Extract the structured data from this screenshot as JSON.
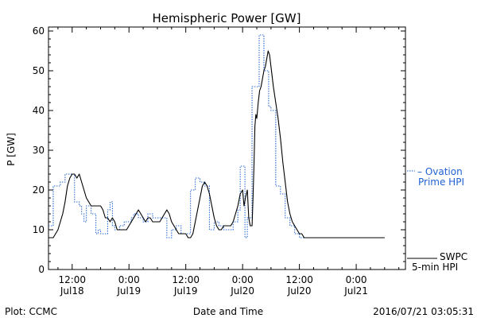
{
  "chart_data": {
    "type": "line",
    "title": "Hemispheric Power [GW]",
    "ylabel": "P [GW]",
    "xlabel": "Date and Time",
    "ylim": [
      0,
      61
    ],
    "yticks": [
      0,
      10,
      20,
      30,
      40,
      50,
      60
    ],
    "x_unit": "hours since 2016-07-17 00:00 UT",
    "xlim": [
      7,
      82.4
    ],
    "xticks": [
      {
        "x": 12,
        "time": "12:00",
        "date": "Jul18"
      },
      {
        "x": 24,
        "time": "0:00",
        "date": "Jul19"
      },
      {
        "x": 36,
        "time": "12:00",
        "date": "Jul19"
      },
      {
        "x": 48,
        "time": "0:00",
        "date": "Jul20"
      },
      {
        "x": 60,
        "time": "12:00",
        "date": "Jul20"
      },
      {
        "x": 72,
        "time": "0:00",
        "date": "Jul21"
      }
    ],
    "series": [
      {
        "name": "SWPC 5-min HPI",
        "color": "#000000",
        "style": "solid",
        "points": [
          [
            7.0,
            8
          ],
          [
            8.0,
            8
          ],
          [
            8.5,
            9
          ],
          [
            9.0,
            10
          ],
          [
            9.5,
            12
          ],
          [
            10.0,
            14
          ],
          [
            10.5,
            17
          ],
          [
            11.0,
            21
          ],
          [
            11.5,
            23
          ],
          [
            12.0,
            24
          ],
          [
            12.5,
            24
          ],
          [
            13.0,
            23
          ],
          [
            13.5,
            24
          ],
          [
            14.0,
            22
          ],
          [
            14.5,
            20
          ],
          [
            15.0,
            18
          ],
          [
            15.5,
            17
          ],
          [
            16.0,
            16
          ],
          [
            17.0,
            16
          ],
          [
            18.0,
            16
          ],
          [
            18.5,
            15
          ],
          [
            19.0,
            13
          ],
          [
            19.5,
            13
          ],
          [
            20.0,
            12
          ],
          [
            20.5,
            13
          ],
          [
            21.0,
            12
          ],
          [
            21.5,
            10
          ],
          [
            22.0,
            10
          ],
          [
            23.0,
            10
          ],
          [
            23.5,
            10
          ],
          [
            24.0,
            11
          ],
          [
            24.5,
            12
          ],
          [
            25.0,
            13
          ],
          [
            25.5,
            14
          ],
          [
            26.0,
            15
          ],
          [
            26.5,
            14
          ],
          [
            27.0,
            13
          ],
          [
            27.5,
            12
          ],
          [
            28.0,
            13
          ],
          [
            28.5,
            13
          ],
          [
            29.0,
            12
          ],
          [
            30.0,
            12
          ],
          [
            30.5,
            12
          ],
          [
            31.0,
            13
          ],
          [
            31.5,
            14
          ],
          [
            32.0,
            15
          ],
          [
            32.5,
            14
          ],
          [
            33.0,
            12
          ],
          [
            33.5,
            11
          ],
          [
            34.0,
            10
          ],
          [
            34.5,
            9
          ],
          [
            35.0,
            9
          ],
          [
            36.0,
            9
          ],
          [
            36.5,
            8
          ],
          [
            37.0,
            8
          ],
          [
            37.5,
            9
          ],
          [
            38.0,
            12
          ],
          [
            38.5,
            15
          ],
          [
            39.0,
            18
          ],
          [
            39.5,
            21
          ],
          [
            40.0,
            22
          ],
          [
            40.5,
            21
          ],
          [
            41.0,
            19
          ],
          [
            41.5,
            16
          ],
          [
            42.0,
            13
          ],
          [
            42.5,
            11
          ],
          [
            43.0,
            10
          ],
          [
            43.5,
            10
          ],
          [
            44.0,
            11
          ],
          [
            44.5,
            11
          ],
          [
            45.0,
            11
          ],
          [
            45.5,
            11
          ],
          [
            46.0,
            12
          ],
          [
            46.5,
            14
          ],
          [
            47.0,
            16
          ],
          [
            47.5,
            19
          ],
          [
            48.0,
            20
          ],
          [
            48.3,
            16
          ],
          [
            48.6,
            18
          ],
          [
            49.0,
            20
          ],
          [
            49.3,
            13
          ],
          [
            49.6,
            11
          ],
          [
            50.0,
            11
          ],
          [
            50.2,
            18
          ],
          [
            50.4,
            26
          ],
          [
            50.6,
            36
          ],
          [
            50.8,
            39
          ],
          [
            51.0,
            38
          ],
          [
            51.3,
            42
          ],
          [
            51.6,
            45
          ],
          [
            51.9,
            46
          ],
          [
            52.2,
            48
          ],
          [
            52.5,
            50
          ],
          [
            52.8,
            51
          ],
          [
            53.1,
            53
          ],
          [
            53.4,
            55
          ],
          [
            53.7,
            54
          ],
          [
            54.0,
            51
          ],
          [
            54.5,
            46
          ],
          [
            55.0,
            42
          ],
          [
            55.5,
            38
          ],
          [
            56.0,
            33
          ],
          [
            56.5,
            27
          ],
          [
            57.0,
            22
          ],
          [
            57.5,
            17
          ],
          [
            58.0,
            14
          ],
          [
            58.5,
            12
          ],
          [
            59.0,
            11
          ],
          [
            59.5,
            10
          ],
          [
            60.0,
            9
          ],
          [
            60.5,
            9
          ],
          [
            61.0,
            8
          ],
          [
            62.0,
            8
          ],
          [
            64.0,
            8
          ],
          [
            66.0,
            8
          ],
          [
            70.0,
            8
          ],
          [
            75.0,
            8
          ],
          [
            78.0,
            8
          ]
        ]
      },
      {
        "name": "Ovation Prime HPI",
        "color": "#1f62d4",
        "style": "step-dotted",
        "points": [
          [
            7.0,
            11
          ],
          [
            8.0,
            21
          ],
          [
            9.5,
            22
          ],
          [
            10.5,
            24
          ],
          [
            11.5,
            24
          ],
          [
            12.5,
            17
          ],
          [
            13.5,
            16
          ],
          [
            14.0,
            14
          ],
          [
            14.5,
            12
          ],
          [
            15.0,
            16
          ],
          [
            16.0,
            14
          ],
          [
            17.0,
            9
          ],
          [
            17.5,
            10
          ],
          [
            18.0,
            9
          ],
          [
            19.5,
            15
          ],
          [
            20.0,
            17
          ],
          [
            20.5,
            11
          ],
          [
            21.0,
            10
          ],
          [
            22.0,
            11
          ],
          [
            23.0,
            12
          ],
          [
            24.0,
            12
          ],
          [
            24.5,
            13
          ],
          [
            25.0,
            14
          ],
          [
            26.0,
            13
          ],
          [
            27.0,
            12
          ],
          [
            28.0,
            14
          ],
          [
            29.0,
            13
          ],
          [
            29.5,
            13
          ],
          [
            30.5,
            13
          ],
          [
            31.0,
            13
          ],
          [
            32.0,
            8
          ],
          [
            33.0,
            10
          ],
          [
            34.0,
            11
          ],
          [
            35.0,
            9
          ],
          [
            36.0,
            9
          ],
          [
            37.0,
            20
          ],
          [
            38.0,
            23
          ],
          [
            39.0,
            22
          ],
          [
            40.0,
            21
          ],
          [
            41.0,
            10
          ],
          [
            42.0,
            12
          ],
          [
            43.0,
            11
          ],
          [
            44.0,
            10
          ],
          [
            45.0,
            10
          ],
          [
            46.0,
            12
          ],
          [
            47.0,
            15
          ],
          [
            47.5,
            26
          ],
          [
            48.5,
            8
          ],
          [
            49.0,
            13
          ],
          [
            50.0,
            46
          ],
          [
            51.5,
            59
          ],
          [
            52.5,
            50
          ],
          [
            53.5,
            41
          ],
          [
            54.0,
            40
          ],
          [
            55.0,
            21
          ],
          [
            56.0,
            19
          ],
          [
            57.0,
            13
          ],
          [
            58.0,
            11
          ],
          [
            59.0,
            9
          ],
          [
            60.0,
            8
          ],
          [
            61.0,
            8
          ],
          [
            62.0,
            8
          ],
          [
            64.0,
            8
          ],
          [
            70.0,
            8
          ],
          [
            75.0,
            8
          ],
          [
            78.0,
            8
          ]
        ]
      }
    ],
    "legend": [
      {
        "label_line1": "– Ovation",
        "label_line2": "Prime HPI",
        "color": "#1f62d4"
      },
      {
        "label_line1": "SWPC",
        "label_line2": "5-min HPI",
        "color": "#000000"
      }
    ],
    "footer_left": "Plot: CCMC",
    "footer_right": "2016/07/21 03:05:31"
  }
}
